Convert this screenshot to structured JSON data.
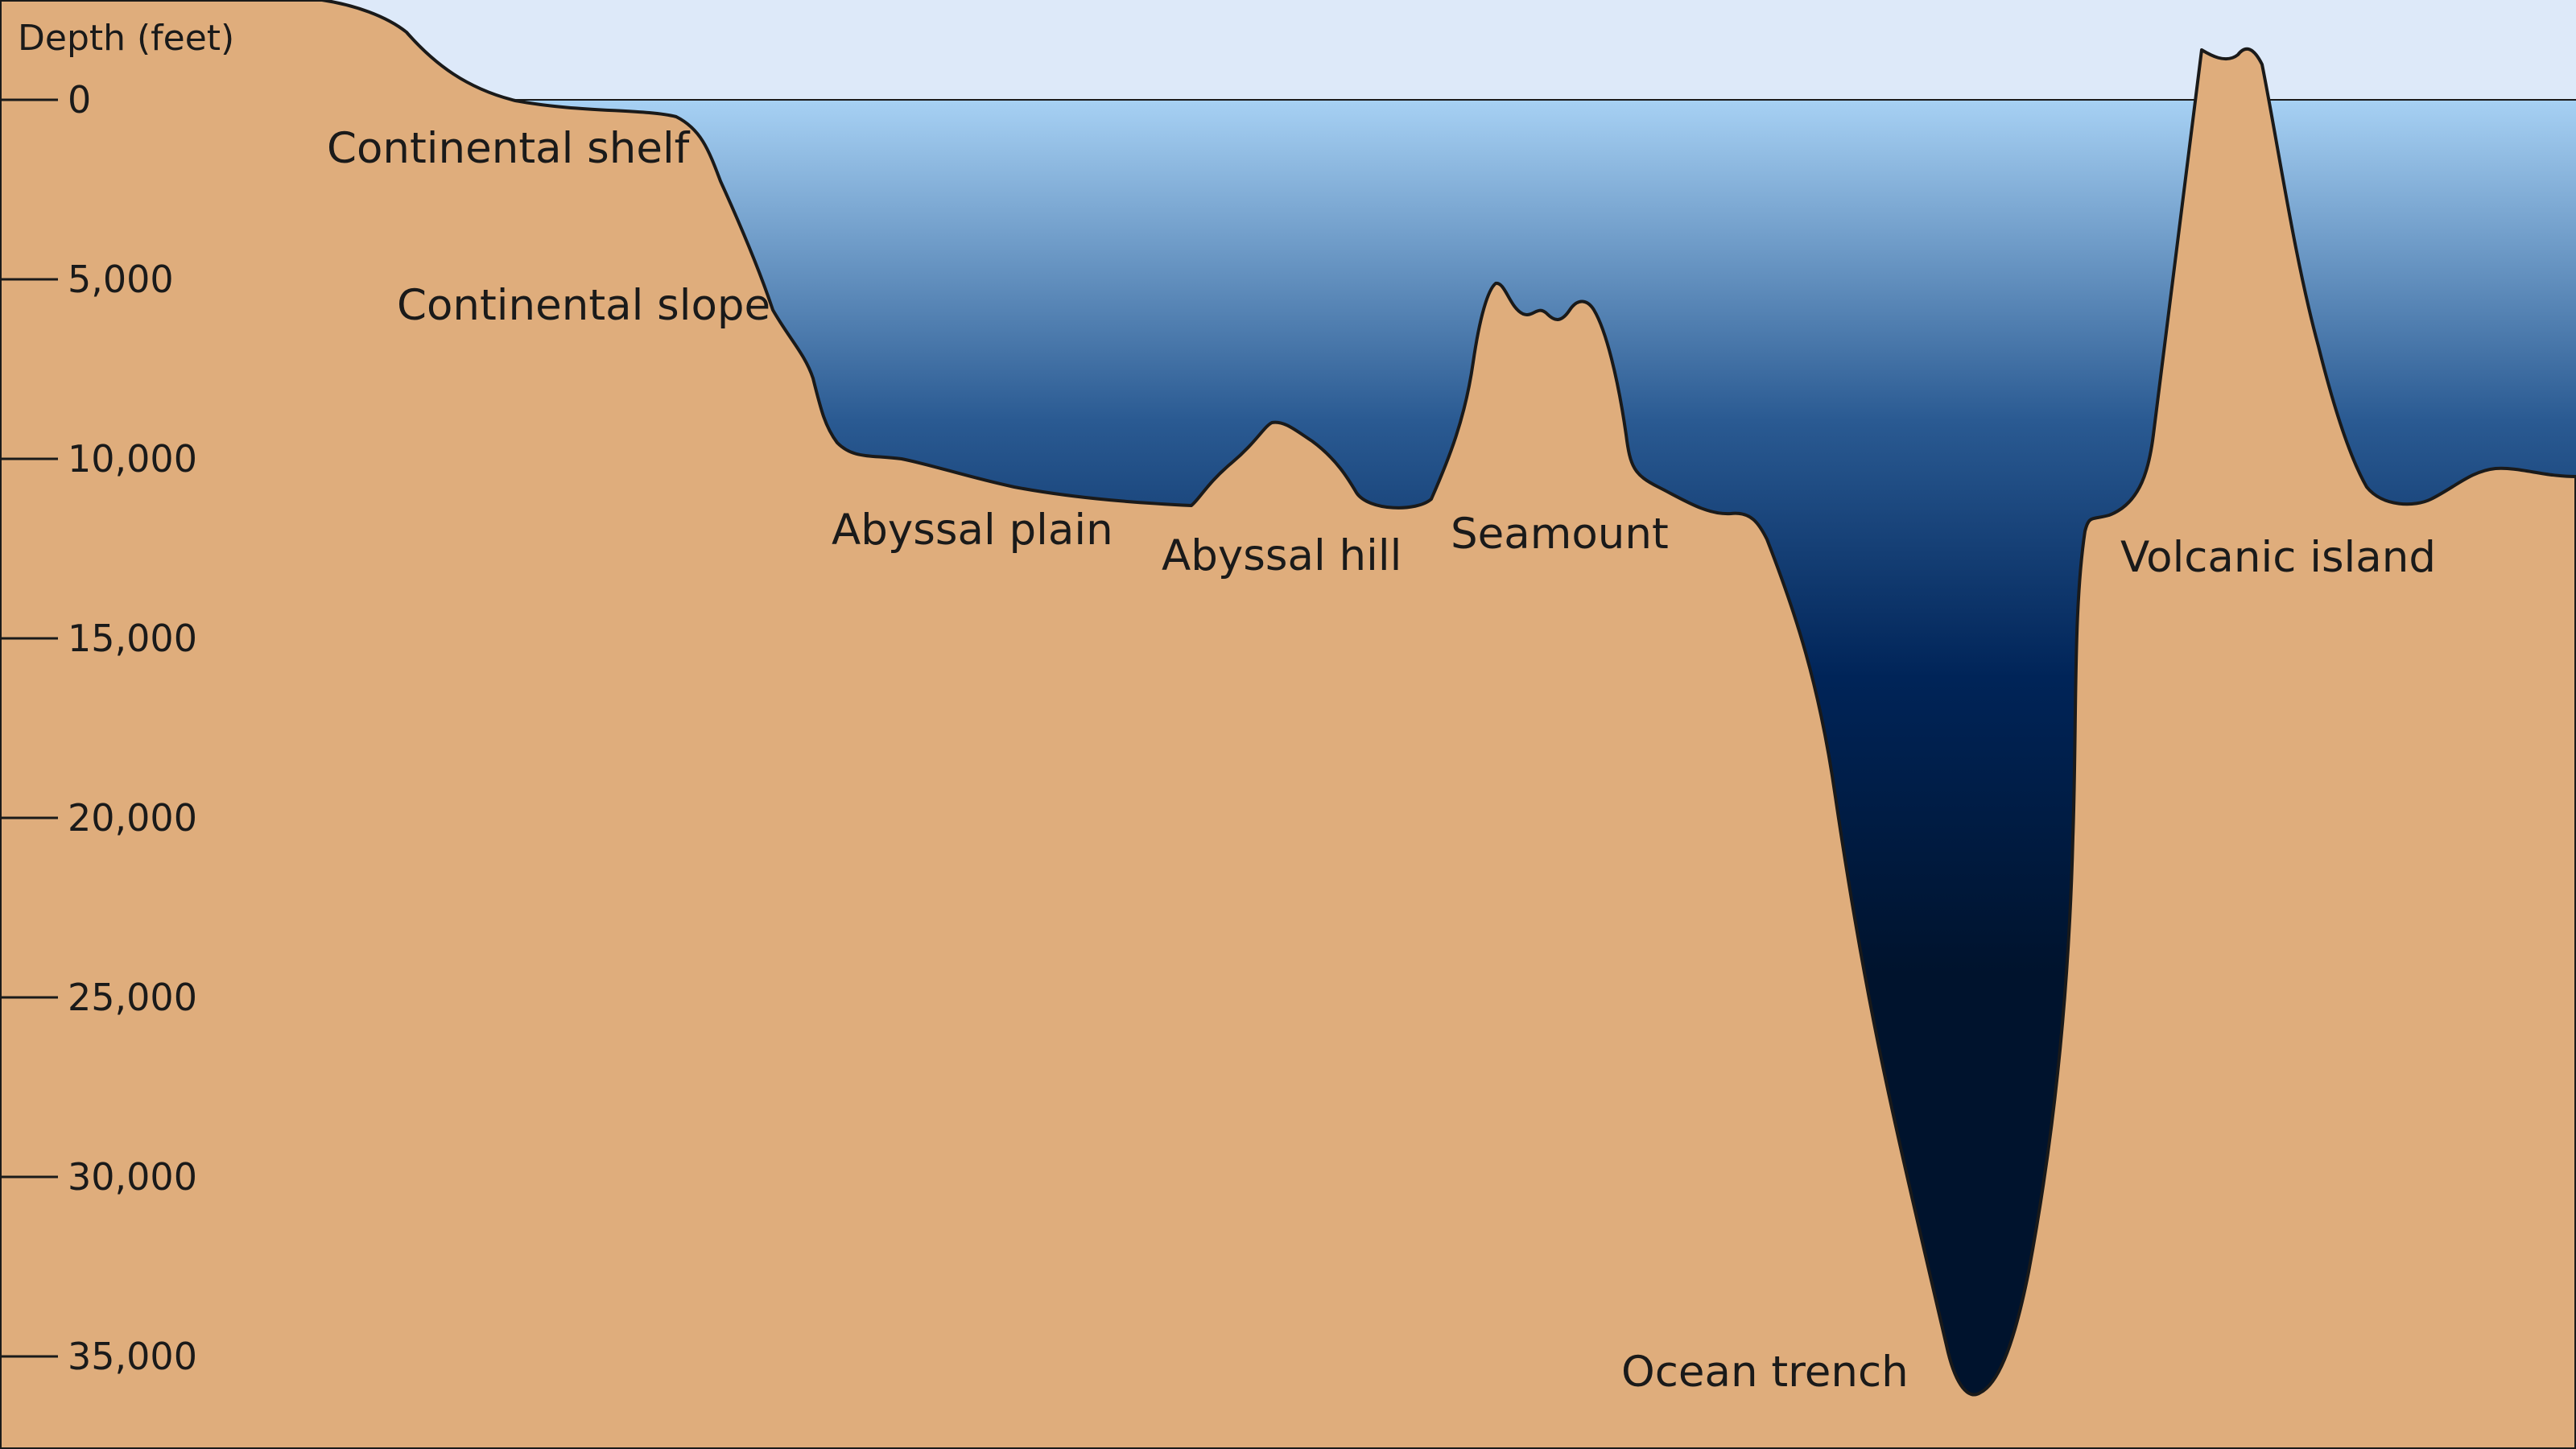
{
  "colors": {
    "sky": "#dde9f9",
    "seabed": "#dfad7c",
    "water_top": "#a7d1f4",
    "water_mid": "#2a5a92",
    "water_deep": "#002458",
    "water_bottom": "#00132d",
    "outline": "#1a1a1a"
  },
  "axis": {
    "title": "Depth (feet)",
    "ticks": [
      {
        "value": 0,
        "label": "0"
      },
      {
        "value": 5000,
        "label": "5,000"
      },
      {
        "value": 10000,
        "label": "10,000"
      },
      {
        "value": 15000,
        "label": "15,000"
      },
      {
        "value": 20000,
        "label": "20,000"
      },
      {
        "value": 25000,
        "label": "25,000"
      },
      {
        "value": 30000,
        "label": "30,000"
      },
      {
        "value": 35000,
        "label": "35,000"
      }
    ]
  },
  "features": {
    "continental_shelf": "Continental shelf",
    "continental_slope": "Continental slope",
    "abyssal_plain": "Abyssal plain",
    "abyssal_hill": "Abyssal hill",
    "seamount": "Seamount",
    "ocean_trench": "Ocean trench",
    "volcanic_island": "Volcanic island"
  }
}
